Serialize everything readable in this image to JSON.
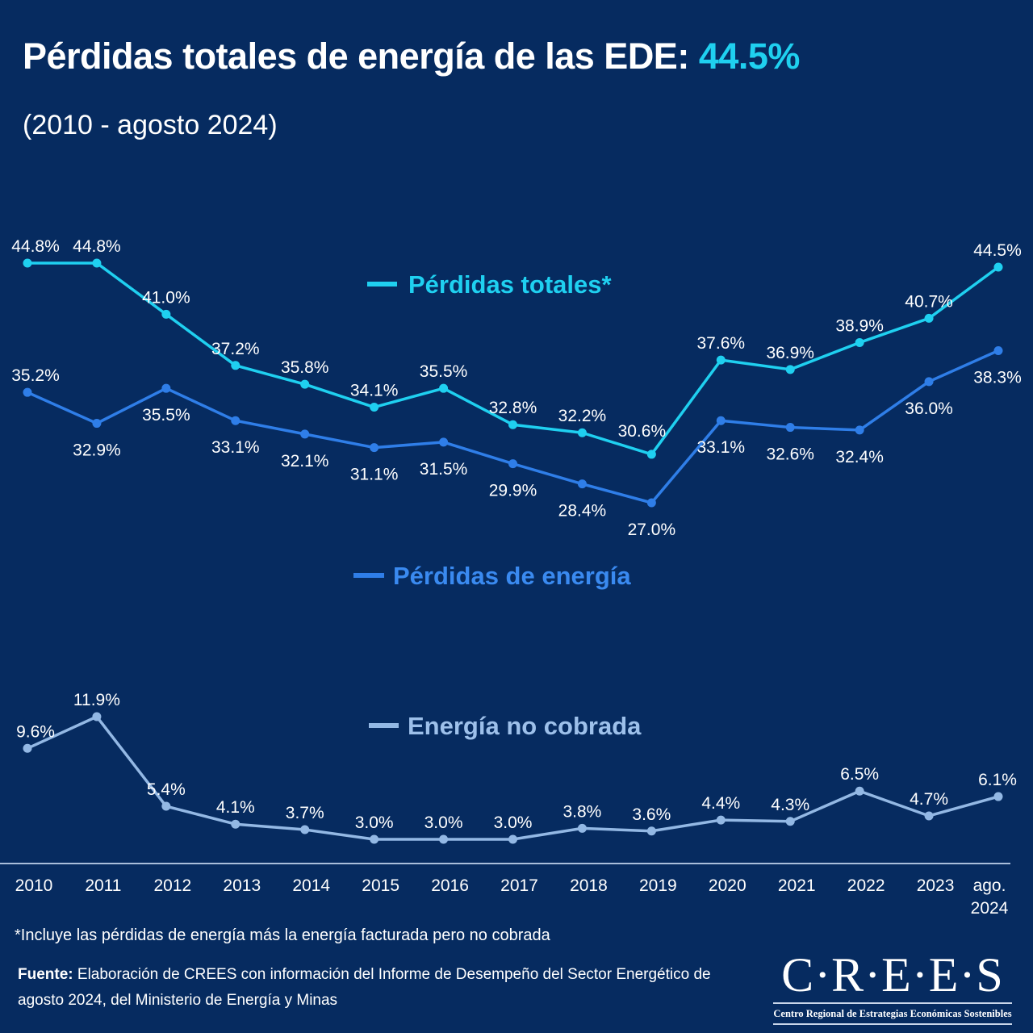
{
  "header": {
    "title": "Pérdidas totales de energía de las EDE:",
    "title_highlight": "44.5%",
    "subtitle": "(2010 - agosto 2024)"
  },
  "colors": {
    "background": "#062b60",
    "perdidas_totales": "#1fd0f0",
    "perdidas_energia": "#2f7ee8",
    "energia_no_cobrada": "#93b8e4",
    "text": "#ffffff"
  },
  "chart_data": {
    "type": "line",
    "title": "Pérdidas totales de energía de las EDE: 44.5%",
    "subtitle": "(2010 - agosto 2024)",
    "xlabel": "",
    "ylabel": "",
    "grid": false,
    "y_axis_visible": false,
    "categories": [
      "2010",
      "2011",
      "2012",
      "2013",
      "2014",
      "2015",
      "2016",
      "2017",
      "2018",
      "2019",
      "2020",
      "2021",
      "2022",
      "2023",
      "ago. 2024"
    ],
    "tick_labels": [
      [
        "2010"
      ],
      [
        "2011"
      ],
      [
        "2012"
      ],
      [
        "2013"
      ],
      [
        "2014"
      ],
      [
        "2015"
      ],
      [
        "2016"
      ],
      [
        "2017"
      ],
      [
        "2018"
      ],
      [
        "2019"
      ],
      [
        "2020"
      ],
      [
        "2021"
      ],
      [
        "2022"
      ],
      [
        "2023"
      ],
      [
        "ago.",
        "2024"
      ]
    ],
    "series": [
      {
        "key": "perdidas_totales",
        "name": "Pérdidas totales*",
        "color": "#1fd0f0",
        "panel": "top",
        "values": [
          44.8,
          44.8,
          41.0,
          37.2,
          35.8,
          34.1,
          35.5,
          32.8,
          32.2,
          30.6,
          37.6,
          36.9,
          38.9,
          40.7,
          44.5
        ],
        "labels": [
          "44.8%",
          "44.8%",
          "41.0%",
          "37.2%",
          "35.8%",
          "34.1%",
          "35.5%",
          "32.8%",
          "32.2%",
          "30.6%",
          "37.6%",
          "36.9%",
          "38.9%",
          "40.7%",
          "44.5%"
        ],
        "label_position": [
          "above",
          "above",
          "above",
          "above",
          "above",
          "above",
          "above",
          "above",
          "above",
          "above-left",
          "above",
          "above",
          "above",
          "above",
          "above"
        ]
      },
      {
        "key": "perdidas_energia",
        "name": "Pérdidas de energía",
        "color": "#2f7ee8",
        "panel": "top",
        "values": [
          35.2,
          32.9,
          35.5,
          33.1,
          32.1,
          31.1,
          31.5,
          29.9,
          28.4,
          27.0,
          33.1,
          32.6,
          32.4,
          36.0,
          38.3
        ],
        "labels": [
          "35.2%",
          "32.9%",
          "35.5%",
          "33.1%",
          "32.1%",
          "31.1%",
          "31.5%",
          "29.9%",
          "28.4%",
          "27.0%",
          "33.1%",
          "32.6%",
          "32.4%",
          "36.0%",
          "38.3%"
        ],
        "label_position": [
          "above",
          "below",
          "below",
          "below",
          "below",
          "below",
          "below",
          "below",
          "below",
          "below",
          "below",
          "below",
          "below",
          "below",
          "below"
        ]
      },
      {
        "key": "energia_no_cobrada",
        "name": "Energía no cobrada",
        "color": "#93b8e4",
        "panel": "bottom",
        "values": [
          9.6,
          11.9,
          5.4,
          4.1,
          3.7,
          3.0,
          3.0,
          3.0,
          3.8,
          3.6,
          4.4,
          4.3,
          6.5,
          4.7,
          6.1
        ],
        "labels": [
          "9.6%",
          "11.9%",
          "5.4%",
          "4.1%",
          "3.7%",
          "3.0%",
          "3.0%",
          "3.0%",
          "3.8%",
          "3.6%",
          "4.4%",
          "4.3%",
          "6.5%",
          "4.7%",
          "6.1%"
        ],
        "label_position": [
          "above",
          "above",
          "above",
          "above",
          "above",
          "above",
          "above",
          "above",
          "above",
          "above",
          "above",
          "above",
          "above",
          "above",
          "above"
        ]
      }
    ],
    "legend": [
      {
        "key": "perdidas_totales",
        "label": "Pérdidas totales*",
        "placement": "top-center"
      },
      {
        "key": "perdidas_energia",
        "label": "Pérdidas de energía",
        "placement": "center"
      },
      {
        "key": "energia_no_cobrada",
        "label": "Energía no cobrada",
        "placement": "bottom-center"
      }
    ]
  },
  "footer": {
    "footnote": "*Incluye las pérdidas de energía más la energía facturada pero no cobrada",
    "source_label": "Fuente:",
    "source_text": "Elaboración de CREES con información del Informe de Desempeño del Sector Energético de agosto 2024, del Ministerio de Energía y Minas"
  },
  "logo": {
    "wordmark": "C·R·E·E·S",
    "tagline": "Centro Regional de Estrategias Económicas Sostenibles"
  }
}
